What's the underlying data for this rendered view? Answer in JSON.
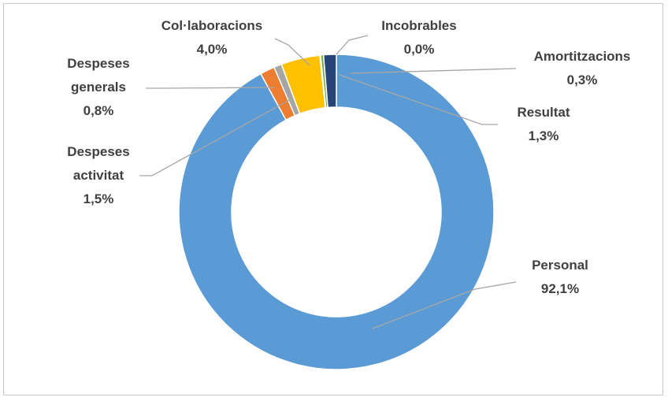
{
  "chart_data": {
    "type": "pie",
    "variant": "doughnut",
    "title": "",
    "legend": "none",
    "direction": "clockwise",
    "start": "top",
    "slices": [
      {
        "name_lines": [
          "Personal"
        ],
        "value": 92.1,
        "label": "92,1%",
        "color": "#5b9bd5"
      },
      {
        "name_lines": [
          "Despeses",
          "activitat"
        ],
        "value": 1.5,
        "label": "1,5%",
        "color": "#ed7d31"
      },
      {
        "name_lines": [
          "Despeses",
          "generals"
        ],
        "value": 0.8,
        "label": "0,8%",
        "color": "#a5a5a5"
      },
      {
        "name_lines": [
          "Col·laboracions"
        ],
        "value": 4.0,
        "label": "4,0%",
        "color": "#ffc000"
      },
      {
        "name_lines": [
          "Incobrables"
        ],
        "value": 0.0,
        "label": "0,0%",
        "color": "#4472c4"
      },
      {
        "name_lines": [
          "Amortitzacions"
        ],
        "value": 0.3,
        "label": "0,3%",
        "color": "#70ad47"
      },
      {
        "name_lines": [
          "Resultat"
        ],
        "value": 1.3,
        "label": "1,3%",
        "color": "#264478"
      }
    ]
  }
}
